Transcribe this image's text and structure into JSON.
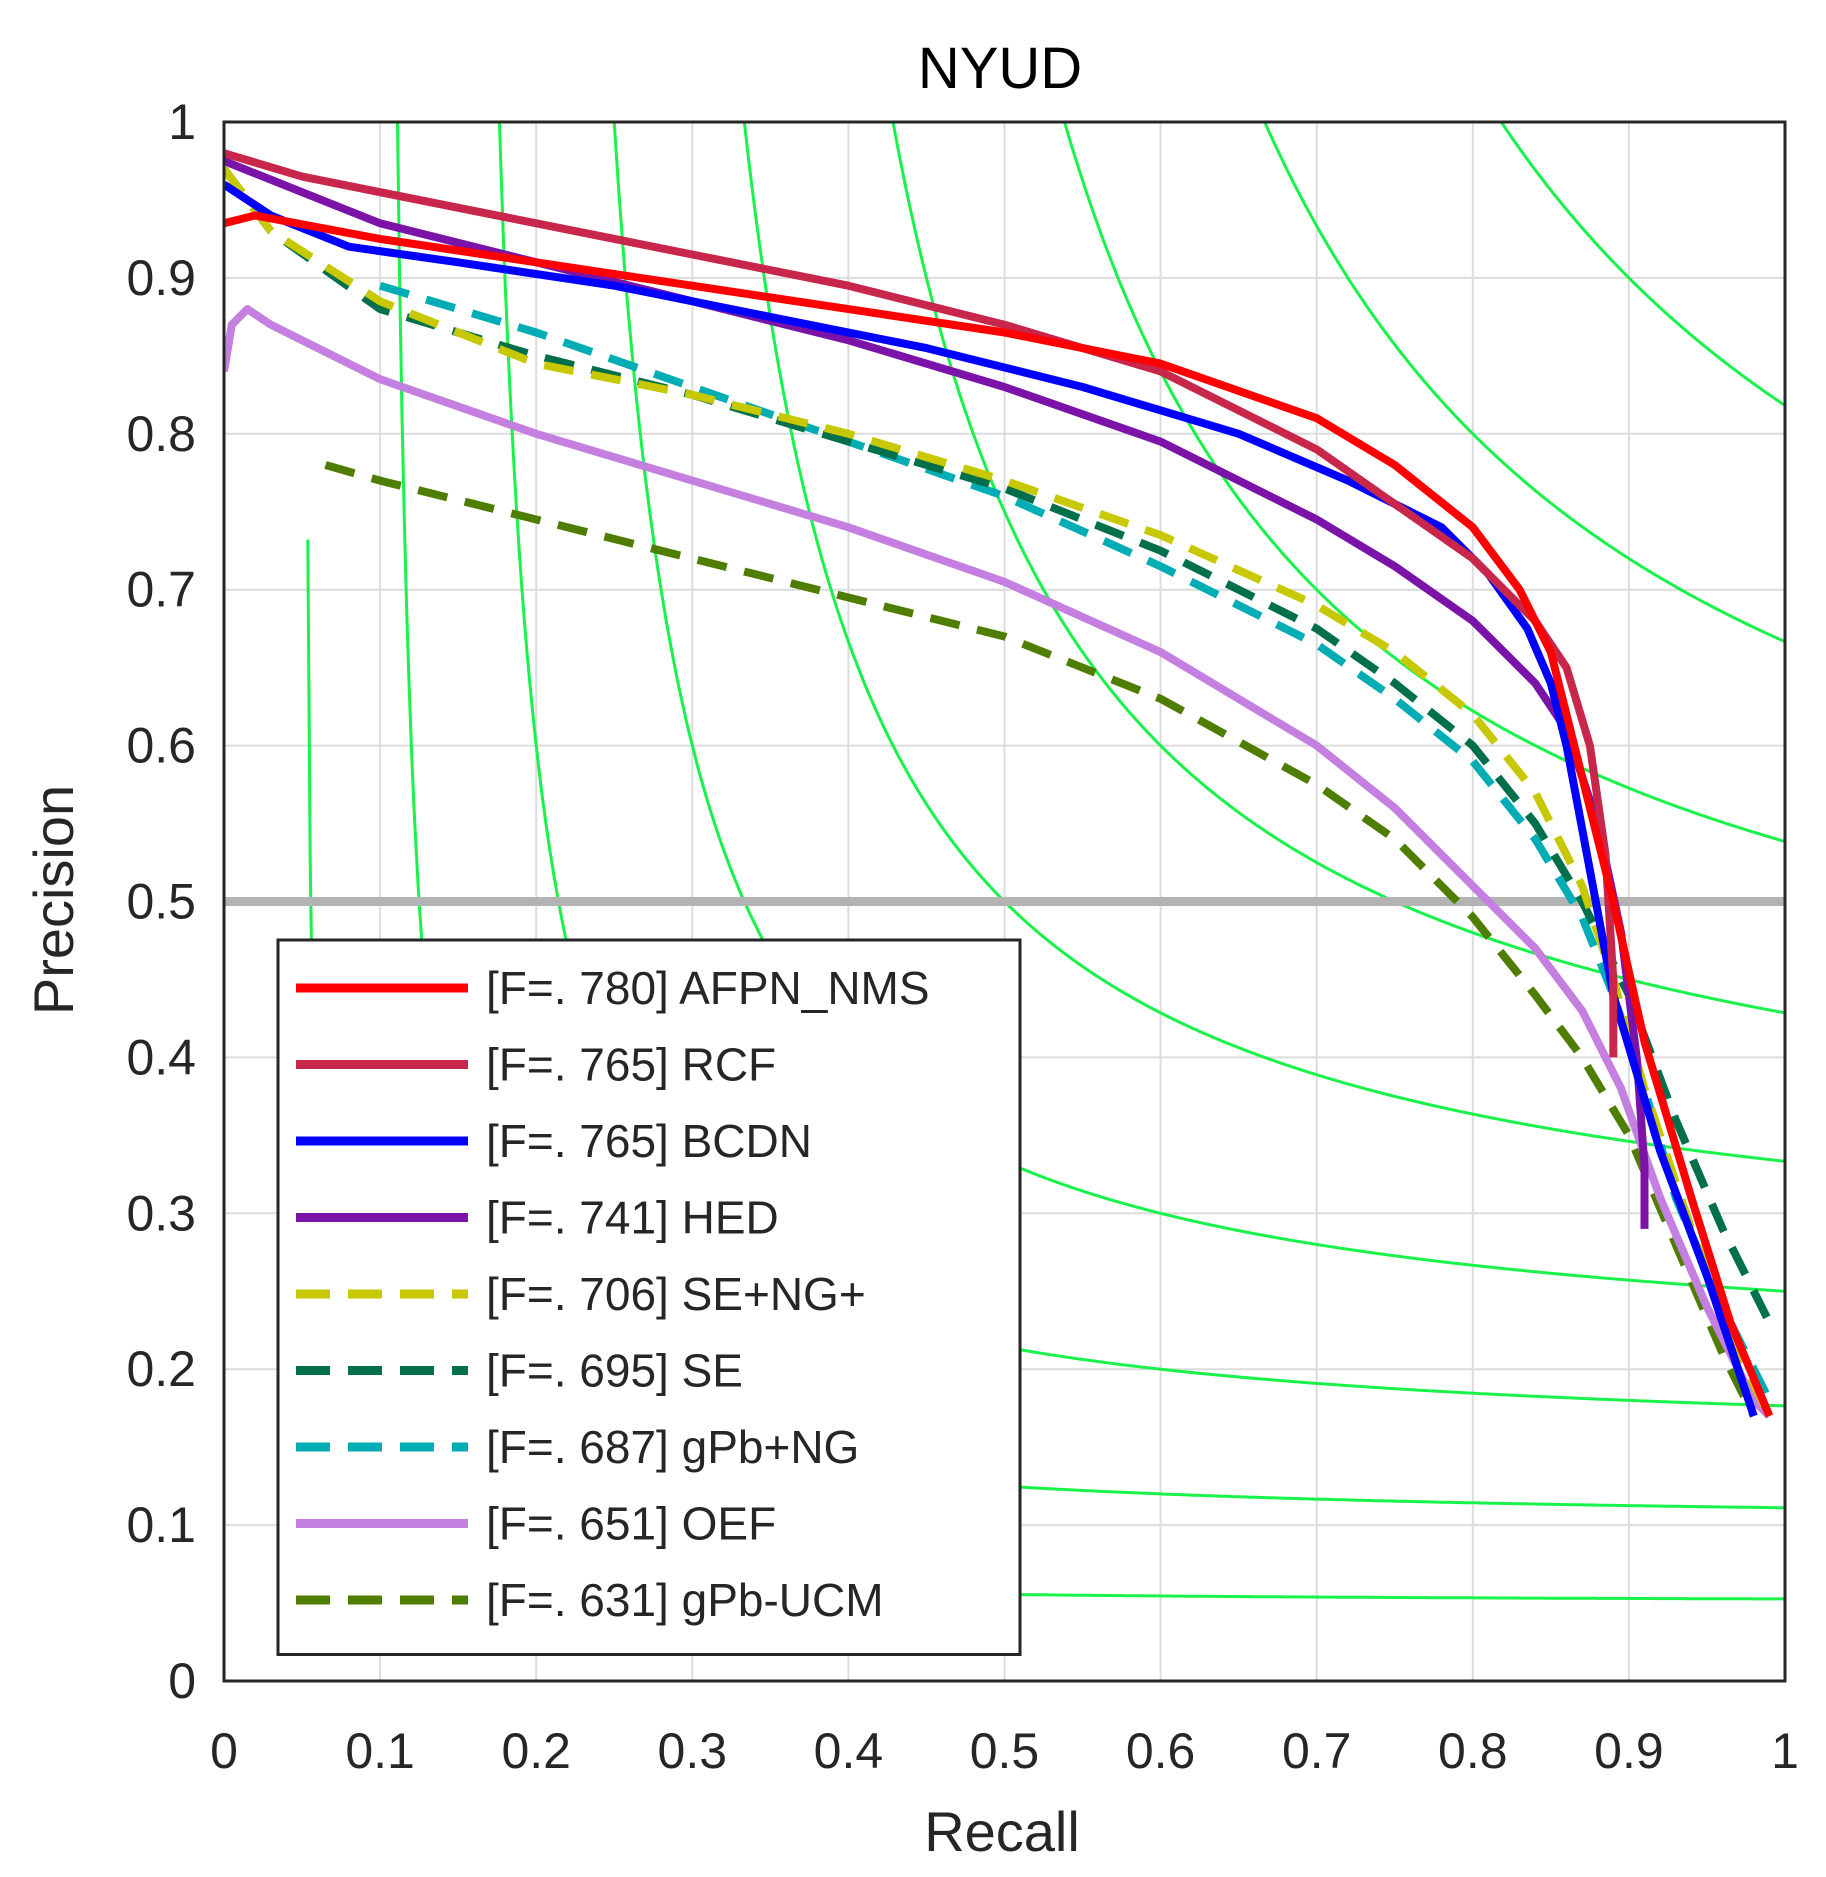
{
  "chart_data": {
    "type": "line",
    "title": "NYUD",
    "xlabel": "Recall",
    "ylabel": "Precision",
    "xlim": [
      0,
      1
    ],
    "ylim": [
      0,
      1
    ],
    "grid": true,
    "legend_position": "bottom-left",
    "x_ticks": [
      "0",
      "0.1",
      "0.2",
      "0.3",
      "0.4",
      "0.5",
      "0.6",
      "0.7",
      "0.8",
      "0.9",
      "1"
    ],
    "y_ticks": [
      "0",
      "0.1",
      "0.2",
      "0.3",
      "0.4",
      "0.5",
      "0.6",
      "0.7",
      "0.8",
      "0.9",
      "1"
    ],
    "reference_line": {
      "y": 0.5,
      "color": "#b3b3b3"
    },
    "iso_f_curves": {
      "color": "#19f24a",
      "f_values": [
        0.1,
        0.2,
        0.3,
        0.4,
        0.5,
        0.6,
        0.7,
        0.8,
        0.9
      ]
    },
    "series": [
      {
        "name": "AFPN_NMS",
        "label": "[F=. 780] AFPN_NMS",
        "color": "#ff0000",
        "dash": false,
        "points": [
          [
            0.0,
            0.935
          ],
          [
            0.02,
            0.94
          ],
          [
            0.1,
            0.925
          ],
          [
            0.2,
            0.91
          ],
          [
            0.3,
            0.895
          ],
          [
            0.4,
            0.88
          ],
          [
            0.5,
            0.865
          ],
          [
            0.6,
            0.845
          ],
          [
            0.7,
            0.81
          ],
          [
            0.75,
            0.78
          ],
          [
            0.8,
            0.74
          ],
          [
            0.83,
            0.7
          ],
          [
            0.85,
            0.66
          ],
          [
            0.87,
            0.58
          ],
          [
            0.89,
            0.5
          ],
          [
            0.91,
            0.41
          ],
          [
            0.94,
            0.31
          ],
          [
            0.965,
            0.23
          ],
          [
            0.99,
            0.17
          ]
        ]
      },
      {
        "name": "RCF",
        "label": "[F=. 765] RCF",
        "color": "#c8264a",
        "dash": false,
        "points": [
          [
            0.0,
            0.98
          ],
          [
            0.05,
            0.965
          ],
          [
            0.1,
            0.955
          ],
          [
            0.2,
            0.935
          ],
          [
            0.3,
            0.915
          ],
          [
            0.4,
            0.895
          ],
          [
            0.5,
            0.87
          ],
          [
            0.6,
            0.84
          ],
          [
            0.7,
            0.79
          ],
          [
            0.75,
            0.755
          ],
          [
            0.8,
            0.72
          ],
          [
            0.84,
            0.68
          ],
          [
            0.86,
            0.65
          ],
          [
            0.875,
            0.6
          ],
          [
            0.885,
            0.53
          ],
          [
            0.89,
            0.45
          ],
          [
            0.89,
            0.4
          ]
        ]
      },
      {
        "name": "BCDN",
        "label": "[F=. 765] BCDN",
        "color": "#0000ff",
        "dash": false,
        "points": [
          [
            0.0,
            0.96
          ],
          [
            0.03,
            0.94
          ],
          [
            0.08,
            0.92
          ],
          [
            0.15,
            0.91
          ],
          [
            0.25,
            0.895
          ],
          [
            0.35,
            0.875
          ],
          [
            0.45,
            0.855
          ],
          [
            0.55,
            0.83
          ],
          [
            0.65,
            0.8
          ],
          [
            0.72,
            0.77
          ],
          [
            0.78,
            0.74
          ],
          [
            0.81,
            0.71
          ],
          [
            0.835,
            0.675
          ],
          [
            0.85,
            0.64
          ],
          [
            0.86,
            0.6
          ],
          [
            0.875,
            0.52
          ],
          [
            0.89,
            0.44
          ],
          [
            0.92,
            0.34
          ],
          [
            0.95,
            0.26
          ],
          [
            0.98,
            0.17
          ]
        ]
      },
      {
        "name": "HED",
        "label": "[F=. 741] HED",
        "color": "#7b13a8",
        "dash": false,
        "points": [
          [
            0.0,
            0.975
          ],
          [
            0.05,
            0.955
          ],
          [
            0.1,
            0.935
          ],
          [
            0.2,
            0.91
          ],
          [
            0.3,
            0.885
          ],
          [
            0.4,
            0.86
          ],
          [
            0.5,
            0.83
          ],
          [
            0.6,
            0.795
          ],
          [
            0.7,
            0.745
          ],
          [
            0.75,
            0.715
          ],
          [
            0.8,
            0.68
          ],
          [
            0.84,
            0.64
          ],
          [
            0.86,
            0.61
          ],
          [
            0.88,
            0.55
          ],
          [
            0.895,
            0.48
          ],
          [
            0.905,
            0.4
          ],
          [
            0.91,
            0.33
          ],
          [
            0.91,
            0.29
          ]
        ]
      },
      {
        "name": "SE+NG+",
        "label": "[F=. 706] SE+NG+",
        "color": "#c8c800",
        "dash": true,
        "points": [
          [
            0.0,
            0.97
          ],
          [
            0.03,
            0.93
          ],
          [
            0.1,
            0.885
          ],
          [
            0.2,
            0.845
          ],
          [
            0.3,
            0.825
          ],
          [
            0.4,
            0.8
          ],
          [
            0.5,
            0.77
          ],
          [
            0.6,
            0.735
          ],
          [
            0.7,
            0.69
          ],
          [
            0.75,
            0.66
          ],
          [
            0.8,
            0.62
          ],
          [
            0.84,
            0.57
          ],
          [
            0.87,
            0.51
          ],
          [
            0.89,
            0.45
          ],
          [
            0.91,
            0.38
          ],
          [
            0.94,
            0.29
          ],
          [
            0.97,
            0.21
          ],
          [
            0.99,
            0.17
          ]
        ]
      },
      {
        "name": "SE",
        "label": "[F=. 695] SE",
        "color": "#006f4b",
        "dash": true,
        "points": [
          [
            0.0,
            0.97
          ],
          [
            0.03,
            0.93
          ],
          [
            0.1,
            0.88
          ],
          [
            0.2,
            0.85
          ],
          [
            0.3,
            0.825
          ],
          [
            0.4,
            0.795
          ],
          [
            0.5,
            0.765
          ],
          [
            0.6,
            0.725
          ],
          [
            0.7,
            0.675
          ],
          [
            0.75,
            0.64
          ],
          [
            0.8,
            0.6
          ],
          [
            0.84,
            0.55
          ],
          [
            0.87,
            0.5
          ],
          [
            0.9,
            0.44
          ],
          [
            0.93,
            0.36
          ],
          [
            0.96,
            0.29
          ],
          [
            0.99,
            0.23
          ]
        ]
      },
      {
        "name": "gPb+NG",
        "label": "[F=. 687] gPb+NG",
        "color": "#00adb5",
        "dash": true,
        "points": [
          [
            0.1,
            0.895
          ],
          [
            0.2,
            0.865
          ],
          [
            0.3,
            0.83
          ],
          [
            0.4,
            0.795
          ],
          [
            0.5,
            0.76
          ],
          [
            0.6,
            0.715
          ],
          [
            0.7,
            0.665
          ],
          [
            0.75,
            0.63
          ],
          [
            0.8,
            0.59
          ],
          [
            0.84,
            0.54
          ],
          [
            0.87,
            0.49
          ],
          [
            0.89,
            0.44
          ],
          [
            0.91,
            0.38
          ],
          [
            0.93,
            0.31
          ],
          [
            0.96,
            0.24
          ],
          [
            0.99,
            0.18
          ]
        ]
      },
      {
        "name": "OEF",
        "label": "[F=. 651] OEF",
        "color": "#c47fe0",
        "dash": false,
        "points": [
          [
            0.0,
            0.84
          ],
          [
            0.005,
            0.87
          ],
          [
            0.015,
            0.88
          ],
          [
            0.03,
            0.87
          ],
          [
            0.1,
            0.835
          ],
          [
            0.2,
            0.8
          ],
          [
            0.3,
            0.77
          ],
          [
            0.4,
            0.74
          ],
          [
            0.5,
            0.705
          ],
          [
            0.6,
            0.66
          ],
          [
            0.7,
            0.6
          ],
          [
            0.75,
            0.56
          ],
          [
            0.8,
            0.51
          ],
          [
            0.84,
            0.47
          ],
          [
            0.87,
            0.43
          ],
          [
            0.895,
            0.38
          ],
          [
            0.92,
            0.31
          ],
          [
            0.95,
            0.24
          ],
          [
            0.98,
            0.18
          ],
          [
            0.99,
            0.17
          ]
        ]
      },
      {
        "name": "gPb-UCM",
        "label": "[F=. 631] gPb-UCM",
        "color": "#4f7d00",
        "dash": true,
        "points": [
          [
            0.065,
            0.78
          ],
          [
            0.1,
            0.77
          ],
          [
            0.2,
            0.745
          ],
          [
            0.3,
            0.72
          ],
          [
            0.4,
            0.695
          ],
          [
            0.5,
            0.67
          ],
          [
            0.6,
            0.63
          ],
          [
            0.7,
            0.575
          ],
          [
            0.75,
            0.54
          ],
          [
            0.8,
            0.49
          ],
          [
            0.84,
            0.44
          ],
          [
            0.87,
            0.4
          ],
          [
            0.9,
            0.35
          ],
          [
            0.93,
            0.28
          ],
          [
            0.96,
            0.21
          ],
          [
            0.98,
            0.17
          ]
        ]
      }
    ]
  }
}
